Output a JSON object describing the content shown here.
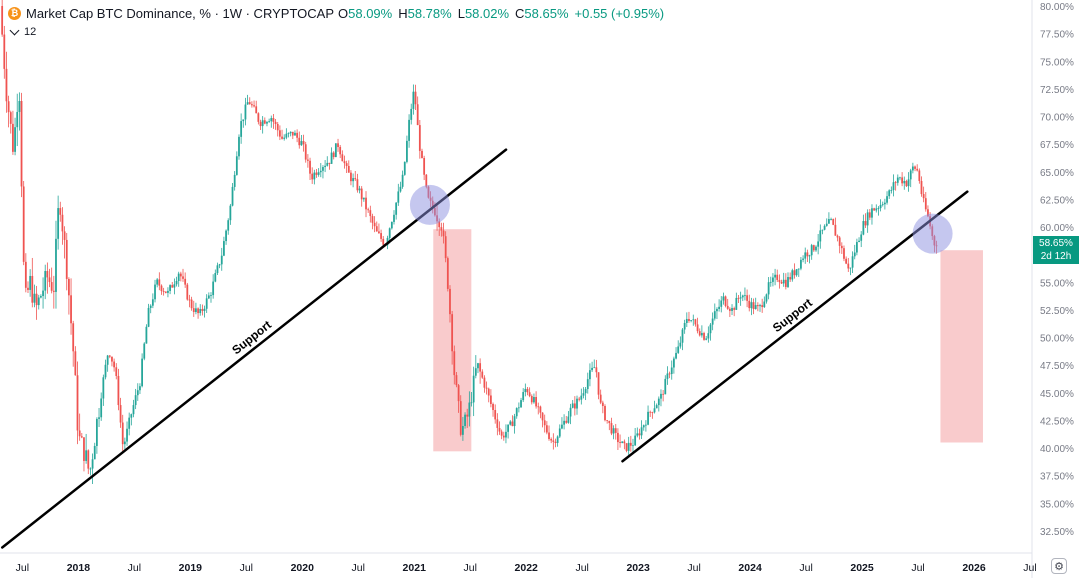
{
  "header": {
    "coin_glyph": "₿",
    "title": "Market Cap BTC Dominance, % · 1W · CRYPTOCAP",
    "ohlc": [
      {
        "label": "O",
        "value": "58.09%"
      },
      {
        "label": "H",
        "value": "58.78%"
      },
      {
        "label": "L",
        "value": "58.02%"
      },
      {
        "label": "C",
        "value": "58.65%"
      }
    ],
    "change": "+0.55 (+0.95%)",
    "indicator_value": "12"
  },
  "price_tag": {
    "value": "58.65%",
    "countdown": "2d 12h"
  },
  "settings_icon": "⚙",
  "chart_data": {
    "type": "candlestick",
    "title": "Market Cap BTC Dominance, % · 1W · CRYPTOCAP",
    "xlabel": "",
    "ylabel": "",
    "y_axis_position": "right",
    "y_unit": "%",
    "ylim": [
      30.5,
      80.0
    ],
    "xlim": [
      2017.3,
      2026.5
    ],
    "y_ticks": [
      "80.00%",
      "77.50%",
      "75.00%",
      "72.50%",
      "70.00%",
      "67.50%",
      "65.00%",
      "62.50%",
      "60.00%",
      "57.50%",
      "55.00%",
      "52.50%",
      "50.00%",
      "47.50%",
      "45.00%",
      "42.50%",
      "40.00%",
      "37.50%",
      "35.00%",
      "32.50%"
    ],
    "y_tick_values": [
      80,
      77.5,
      75,
      72.5,
      70,
      67.5,
      65,
      62.5,
      60,
      57.5,
      55,
      52.5,
      50,
      47.5,
      45,
      42.5,
      40,
      37.5,
      35,
      32.5
    ],
    "x_ticks": [
      {
        "label": "Jul",
        "x": 2017.5,
        "bold": false
      },
      {
        "label": "2018",
        "x": 2018.0,
        "bold": true
      },
      {
        "label": "Jul",
        "x": 2018.5,
        "bold": false
      },
      {
        "label": "2019",
        "x": 2019.0,
        "bold": true
      },
      {
        "label": "Jul",
        "x": 2019.5,
        "bold": false
      },
      {
        "label": "2020",
        "x": 2020.0,
        "bold": true
      },
      {
        "label": "Jul",
        "x": 2020.5,
        "bold": false
      },
      {
        "label": "2021",
        "x": 2021.0,
        "bold": true
      },
      {
        "label": "Jul",
        "x": 2021.5,
        "bold": false
      },
      {
        "label": "2022",
        "x": 2022.0,
        "bold": true
      },
      {
        "label": "Jul",
        "x": 2022.5,
        "bold": false
      },
      {
        "label": "2023",
        "x": 2023.0,
        "bold": true
      },
      {
        "label": "Jul",
        "x": 2023.5,
        "bold": false
      },
      {
        "label": "2024",
        "x": 2024.0,
        "bold": true
      },
      {
        "label": "Jul",
        "x": 2024.5,
        "bold": false
      },
      {
        "label": "2025",
        "x": 2025.0,
        "bold": true
      },
      {
        "label": "Jul",
        "x": 2025.5,
        "bold": false
      },
      {
        "label": "2026",
        "x": 2026.0,
        "bold": true
      },
      {
        "label": "Jul",
        "x": 2026.5,
        "bold": false
      }
    ],
    "path_points": [
      [
        2017.3,
        80.0
      ],
      [
        2017.36,
        72.0
      ],
      [
        2017.42,
        67.0
      ],
      [
        2017.47,
        73.5
      ],
      [
        2017.52,
        53.0
      ],
      [
        2017.57,
        55.0
      ],
      [
        2017.62,
        52.5
      ],
      [
        2017.67,
        54.0
      ],
      [
        2017.72,
        55.5
      ],
      [
        2017.78,
        54.5
      ],
      [
        2017.83,
        63.0
      ],
      [
        2017.9,
        56.0
      ],
      [
        2017.96,
        48.0
      ],
      [
        2018.0,
        41.0
      ],
      [
        2018.06,
        39.5
      ],
      [
        2018.1,
        37.6
      ],
      [
        2018.16,
        42.0
      ],
      [
        2018.22,
        46.0
      ],
      [
        2018.27,
        49.0
      ],
      [
        2018.33,
        47.0
      ],
      [
        2018.4,
        40.0
      ],
      [
        2018.47,
        43.0
      ],
      [
        2018.55,
        46.0
      ],
      [
        2018.62,
        52.0
      ],
      [
        2018.7,
        55.0
      ],
      [
        2018.8,
        54.0
      ],
      [
        2018.9,
        56.0
      ],
      [
        2019.0,
        53.0
      ],
      [
        2019.08,
        52.0
      ],
      [
        2019.18,
        54.0
      ],
      [
        2019.28,
        57.5
      ],
      [
        2019.36,
        62.0
      ],
      [
        2019.44,
        69.0
      ],
      [
        2019.52,
        71.5
      ],
      [
        2019.62,
        69.5
      ],
      [
        2019.72,
        70.0
      ],
      [
        2019.82,
        68.0
      ],
      [
        2019.92,
        68.5
      ],
      [
        2020.0,
        67.5
      ],
      [
        2020.08,
        64.5
      ],
      [
        2020.16,
        65.5
      ],
      [
        2020.24,
        66.0
      ],
      [
        2020.32,
        67.5
      ],
      [
        2020.4,
        65.0
      ],
      [
        2020.5,
        63.5
      ],
      [
        2020.58,
        61.5
      ],
      [
        2020.66,
        59.5
      ],
      [
        2020.74,
        58.5
      ],
      [
        2020.82,
        61.5
      ],
      [
        2020.9,
        64.5
      ],
      [
        2020.96,
        70.0
      ],
      [
        2021.0,
        72.5
      ],
      [
        2021.04,
        68.0
      ],
      [
        2021.08,
        65.0
      ],
      [
        2021.12,
        62.5
      ],
      [
        2021.18,
        61.5
      ],
      [
        2021.24,
        60.5
      ],
      [
        2021.3,
        55.0
      ],
      [
        2021.36,
        46.5
      ],
      [
        2021.42,
        41.5
      ],
      [
        2021.48,
        43.0
      ],
      [
        2021.56,
        47.5
      ],
      [
        2021.62,
        46.0
      ],
      [
        2021.7,
        43.5
      ],
      [
        2021.78,
        41.0
      ],
      [
        2021.86,
        42.0
      ],
      [
        2021.94,
        44.0
      ],
      [
        2022.0,
        45.5
      ],
      [
        2022.08,
        44.0
      ],
      [
        2022.16,
        42.0
      ],
      [
        2022.24,
        40.5
      ],
      [
        2022.32,
        42.0
      ],
      [
        2022.4,
        43.5
      ],
      [
        2022.48,
        44.5
      ],
      [
        2022.56,
        46.5
      ],
      [
        2022.62,
        47.5
      ],
      [
        2022.66,
        44.0
      ],
      [
        2022.72,
        42.5
      ],
      [
        2022.8,
        41.0
      ],
      [
        2022.88,
        40.0
      ],
      [
        2022.96,
        40.5
      ],
      [
        2023.04,
        42.0
      ],
      [
        2023.12,
        43.5
      ],
      [
        2023.2,
        44.5
      ],
      [
        2023.28,
        47.0
      ],
      [
        2023.36,
        49.0
      ],
      [
        2023.44,
        52.0
      ],
      [
        2023.52,
        51.0
      ],
      [
        2023.6,
        50.0
      ],
      [
        2023.68,
        52.0
      ],
      [
        2023.76,
        53.5
      ],
      [
        2023.84,
        52.5
      ],
      [
        2023.92,
        54.0
      ],
      [
        2024.0,
        53.0
      ],
      [
        2024.08,
        52.5
      ],
      [
        2024.16,
        54.5
      ],
      [
        2024.24,
        55.5
      ],
      [
        2024.32,
        55.0
      ],
      [
        2024.4,
        56.0
      ],
      [
        2024.48,
        57.5
      ],
      [
        2024.56,
        58.0
      ],
      [
        2024.64,
        59.5
      ],
      [
        2024.72,
        60.5
      ],
      [
        2024.8,
        58.5
      ],
      [
        2024.88,
        56.0
      ],
      [
        2024.94,
        58.0
      ],
      [
        2025.0,
        60.0
      ],
      [
        2025.08,
        61.5
      ],
      [
        2025.16,
        62.0
      ],
      [
        2025.24,
        63.0
      ],
      [
        2025.32,
        64.5
      ],
      [
        2025.4,
        64.0
      ],
      [
        2025.46,
        65.5
      ],
      [
        2025.5,
        65.0
      ],
      [
        2025.54,
        62.5
      ],
      [
        2025.6,
        60.5
      ],
      [
        2025.64,
        58.5
      ],
      [
        2025.67,
        58.65
      ]
    ],
    "annotations": [
      {
        "type": "trendline",
        "label": "Support",
        "from": [
          2017.32,
          31.0
        ],
        "to": [
          2021.82,
          67.0
        ]
      },
      {
        "type": "trendline",
        "label": "Support",
        "from": [
          2022.86,
          38.8
        ],
        "to": [
          2025.94,
          63.2
        ]
      },
      {
        "type": "rect",
        "color": "#f28b8f",
        "x0": 2021.17,
        "x1": 2021.51,
        "y0": 39.7,
        "y1": 59.8
      },
      {
        "type": "rect",
        "color": "#f28b8f",
        "x0": 2025.7,
        "x1": 2026.08,
        "y0": 40.5,
        "y1": 57.9
      },
      {
        "type": "circle",
        "color": "#8c8fe0",
        "x": 2021.14,
        "y": 62.0
      },
      {
        "type": "circle",
        "color": "#8c8fe0",
        "x": 2025.63,
        "y": 59.4
      }
    ],
    "current_value": 58.65,
    "up_color": "#26a69a",
    "down_color": "#ef5350",
    "grid": false
  }
}
